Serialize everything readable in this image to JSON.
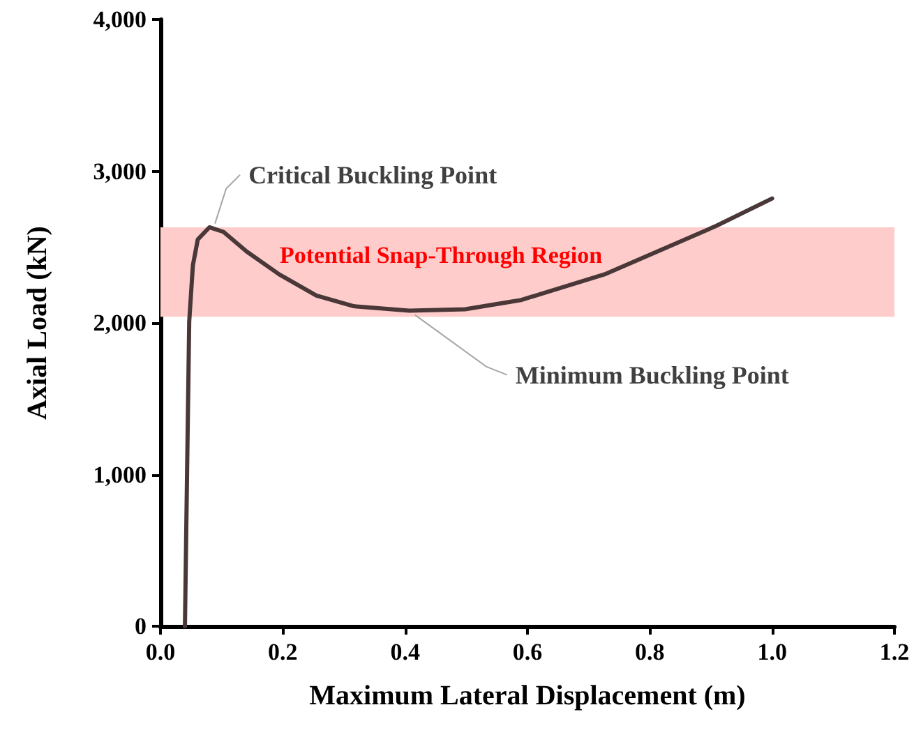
{
  "chart_data": {
    "type": "line",
    "xlabel": "Maximum Lateral Displacement (m)",
    "ylabel": "Axial Load (kN)",
    "x": [
      0.04,
      0.044,
      0.047,
      0.053,
      0.061,
      0.08,
      0.103,
      0.141,
      0.194,
      0.255,
      0.316,
      0.407,
      0.498,
      0.574,
      0.589,
      0.726,
      0.909,
      1.0
    ],
    "series": [
      {
        "color": "#4a3838",
        "values": [
          0,
          1160,
          2010,
          2380,
          2550,
          2630,
          2600,
          2470,
          2320,
          2180,
          2110,
          2080,
          2090,
          2140,
          2150,
          2320,
          2640,
          2820
        ]
      }
    ],
    "xlim": [
      0,
      1.2
    ],
    "ylim": [
      0,
      4000
    ],
    "xticks": [
      {
        "value": 0,
        "label": "0.0"
      },
      {
        "value": 0.2,
        "label": "0.2"
      },
      {
        "value": 0.4,
        "label": "0.4"
      },
      {
        "value": 0.6,
        "label": "0.6"
      },
      {
        "value": 0.8,
        "label": "0.8"
      },
      {
        "value": 1,
        "label": "1.0"
      },
      {
        "value": 1.2,
        "label": "1.2"
      }
    ],
    "yticks": [
      0,
      {
        "value": 1000,
        "label": "1,000"
      },
      {
        "value": 2000,
        "label": "2,000"
      },
      {
        "value": 3000,
        "label": "3,000"
      },
      {
        "value": 4000,
        "label": "4,000"
      }
    ],
    "bands": [
      {
        "axis": "y",
        "from": 2040,
        "to": 2630,
        "label": "Potential Snap-Through Region",
        "color": "#ffcccc"
      }
    ],
    "annotations": [
      {
        "text": "Critical Buckling Point",
        "x": 0.08,
        "y": 2627
      },
      {
        "text": "Minimum Buckling Point",
        "x": 0.407,
        "y": 2080
      }
    ],
    "grid": false,
    "marker": "none",
    "line_style": "solid"
  }
}
